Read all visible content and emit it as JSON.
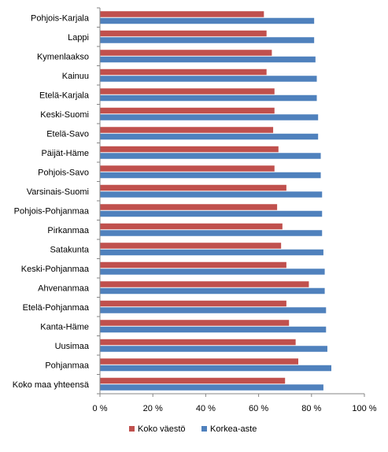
{
  "chart_data": {
    "type": "bar",
    "orientation": "horizontal",
    "categories": [
      "Pohjois-Karjala",
      "Lappi",
      "Kymenlaakso",
      "Kainuu",
      "Etelä-Karjala",
      "Keski-Suomi",
      "Etelä-Savo",
      "Päijät-Häme",
      "Pohjois-Savo",
      "Varsinais-Suomi",
      "Pohjois-Pohjanmaa",
      "Pirkanmaa",
      "Satakunta",
      "Keski-Pohjanmaa",
      "Ahvenanmaa",
      "Etelä-Pohjanmaa",
      "Kanta-Häme",
      "Uusimaa",
      "Pohjanmaa",
      "Koko maa yhteensä"
    ],
    "series": [
      {
        "name": "Koko väestö",
        "color": "#c0504d",
        "values": [
          62,
          63,
          65,
          63,
          66,
          66,
          65.5,
          67.5,
          66,
          70.5,
          67,
          69,
          68.5,
          70.5,
          79,
          70.5,
          71.5,
          74,
          75,
          70
        ]
      },
      {
        "name": "Korkea-aste",
        "color": "#4f81bd",
        "values": [
          81,
          81,
          81.5,
          82,
          82,
          82.5,
          82.5,
          83.5,
          83.5,
          84,
          84,
          84,
          84.5,
          85,
          85,
          85.5,
          85.5,
          86,
          87.5,
          84.5
        ]
      }
    ],
    "x_ticks": [
      "0 %",
      "20 %",
      "40 %",
      "60 %",
      "80 %",
      "100 %"
    ],
    "xlim": [
      0,
      100
    ],
    "xlabel": "",
    "ylabel": "",
    "title": "",
    "grid": false,
    "legend_position": "bottom"
  }
}
